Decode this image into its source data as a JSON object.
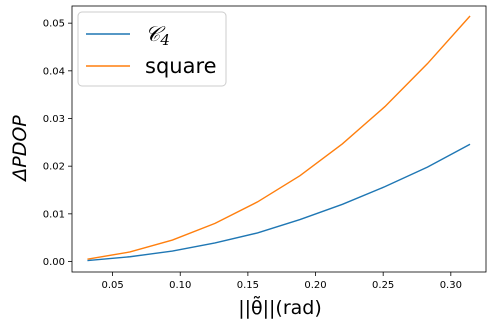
{
  "chart_data": {
    "type": "line",
    "title": "",
    "xlabel": "||θ̃||(rad)",
    "ylabel": "ΔPDOP",
    "xlim": [
      0.02,
      0.326
    ],
    "ylim": [
      -0.0022,
      0.0536
    ],
    "xticks": [
      0.05,
      0.1,
      0.15,
      0.2,
      0.25,
      0.3
    ],
    "xtick_labels": [
      "0.05",
      "0.10",
      "0.15",
      "0.20",
      "0.25",
      "0.30"
    ],
    "yticks": [
      0.0,
      0.01,
      0.02,
      0.03,
      0.04,
      0.05
    ],
    "ytick_labels": [
      "0.00",
      "0.01",
      "0.02",
      "0.03",
      "0.04",
      "0.05"
    ],
    "grid": false,
    "legend_position": "top-left",
    "x": [
      0.0314,
      0.0628,
      0.0942,
      0.1257,
      0.1571,
      0.1885,
      0.2199,
      0.2513,
      0.2827,
      0.3142
    ],
    "series": [
      {
        "name": "C4",
        "color": "#1f77b4",
        "values": [
          0.0002,
          0.001,
          0.0022,
          0.0039,
          0.006,
          0.0088,
          0.012,
          0.0157,
          0.0198,
          0.0246
        ]
      },
      {
        "name": "square",
        "color": "#ff7f0e",
        "values": [
          0.0005,
          0.002,
          0.0045,
          0.008,
          0.0125,
          0.018,
          0.0247,
          0.0325,
          0.0415,
          0.0515
        ]
      }
    ]
  }
}
